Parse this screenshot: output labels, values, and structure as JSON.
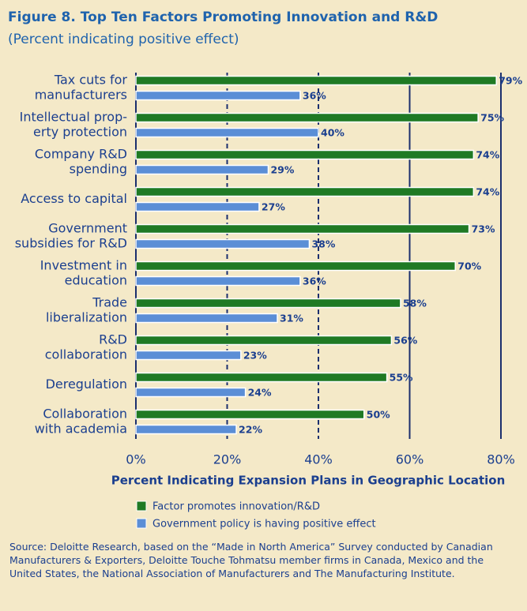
{
  "chart_data": {
    "type": "hbar",
    "title": "Figure 8. Top Ten Factors Promoting Innovation and R&D",
    "subtitle": "(Percent indicating positive effect)",
    "x_label": "Percent Indicating Expansion Plans in Geographic Location",
    "categories": [
      [
        "Tax cuts for",
        "manufacturers"
      ],
      [
        "Intellectual prop-",
        "erty protection"
      ],
      [
        "Company R&D",
        "spending"
      ],
      [
        "Access to capital"
      ],
      [
        "Government",
        "subsidies for R&D"
      ],
      [
        "Investment in",
        "education"
      ],
      [
        "Trade",
        "liberalization"
      ],
      [
        "R&D",
        "collaboration"
      ],
      [
        "Deregulation"
      ],
      [
        "Collaboration",
        "with academia"
      ]
    ],
    "series": [
      {
        "name": "Factor promotes innovation/R&D",
        "color": "#1f7a24",
        "values": [
          79,
          75,
          74,
          74,
          73,
          70,
          58,
          56,
          55,
          50
        ],
        "value_labels": [
          "79%",
          "75%",
          "74%",
          "74%",
          "73%",
          "70%",
          "58%",
          "56%",
          "55%",
          "50%"
        ]
      },
      {
        "name": "Government policy is having positive effect",
        "color": "#5b8ed6",
        "values": [
          36,
          40,
          29,
          27,
          38,
          36,
          31,
          23,
          24,
          22
        ],
        "value_labels": [
          "36%",
          "40%",
          "29%",
          "27%",
          "38%",
          "36%",
          "31%",
          "23%",
          "24%",
          "22%"
        ]
      }
    ],
    "xlim": [
      0,
      80
    ],
    "xticks": [
      {
        "value": 0,
        "label": "0%"
      },
      {
        "value": 20,
        "label": "20%"
      },
      {
        "value": 40,
        "label": "40%"
      },
      {
        "value": 60,
        "label": "60%"
      },
      {
        "value": 80,
        "label": "80%"
      }
    ],
    "grid": true,
    "source": "Source: Deloitte Research, based on the “Made in North America” Survey conducted by Canadian Manufacturers & Exporters, Deloitte Touche Tohmatsu member firms in Canada, Mexico and the United States, the National Association of Manufacturers and The Manufacturing Institute."
  }
}
